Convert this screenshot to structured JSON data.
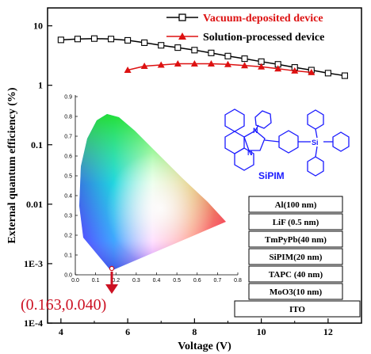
{
  "chart_data": {
    "type": "line",
    "xlabel": "Voltage (V)",
    "ylabel": "External quantum efficiency (%)",
    "xlim": [
      3.6,
      13.0
    ],
    "ylim": [
      0.0001,
      20
    ],
    "yscale": "log",
    "xticks": [
      "4",
      "6",
      "8",
      "10",
      "12"
    ],
    "xtick_values": [
      4,
      6,
      8,
      10,
      12
    ],
    "yticks": [
      "10",
      "1",
      "0.1",
      "0.01",
      "1E-3",
      "1E-4"
    ],
    "ytick_values": [
      10,
      1,
      0.1,
      0.01,
      0.001,
      0.0001
    ],
    "legend_position": "top-right",
    "series": [
      {
        "name": "Vacuum-deposited device",
        "color": "#000000",
        "marker": "open-square",
        "x": [
          4.0,
          4.5,
          5.0,
          5.5,
          6.0,
          6.5,
          7.0,
          7.5,
          8.0,
          8.5,
          9.0,
          9.5,
          10.0,
          10.5,
          11.0,
          11.5,
          12.0,
          12.5
        ],
        "y": [
          5.8,
          6.0,
          6.1,
          6.0,
          5.7,
          5.2,
          4.7,
          4.3,
          3.9,
          3.5,
          3.1,
          2.8,
          2.5,
          2.25,
          2.0,
          1.8,
          1.6,
          1.45
        ]
      },
      {
        "name": "Solution-processed device",
        "color": "#dd1111",
        "marker": "filled-triangle",
        "x": [
          6.0,
          6.5,
          7.0,
          7.5,
          8.0,
          8.5,
          9.0,
          9.5,
          10.0,
          10.5,
          11.0,
          11.5
        ],
        "y": [
          1.8,
          2.1,
          2.2,
          2.3,
          2.3,
          2.3,
          2.25,
          2.15,
          2.05,
          1.9,
          1.75,
          1.65
        ]
      }
    ]
  },
  "inset_cie": {
    "xticks": [
      "0.0",
      "0.1",
      "0.2",
      "0.3",
      "0.4",
      "0.5",
      "0.6",
      "0.7",
      "0.8"
    ],
    "yticks": [
      "0.0",
      "0.1",
      "0.2",
      "0.3",
      "0.4",
      "0.5",
      "0.6",
      "0.7",
      "0.8",
      "0.9"
    ],
    "point": {
      "x": 0.163,
      "y": 0.04
    },
    "coordinate_label": "(0.163,0.040)",
    "point_color": "#cc1122"
  },
  "molecule": {
    "name": "SiPIM",
    "label_color": "#1a1aff"
  },
  "device_stack": {
    "layers": [
      "Al(100 nm)",
      "LiF (0.5 nm)",
      "TmPyPb(40 nm)",
      "SiPIM(20 nm)",
      "TAPC (40 nm)",
      "MoO3(10 nm)",
      "ITO"
    ]
  }
}
